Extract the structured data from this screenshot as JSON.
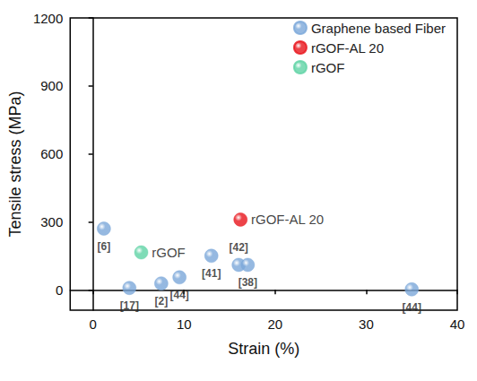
{
  "chart_data": {
    "type": "scatter",
    "xlabel": "Strain (%)",
    "ylabel": "Tensile stress (MPa)",
    "xlim": [
      -2.5,
      40
    ],
    "xticks": [
      0,
      10,
      20,
      30,
      40
    ],
    "ylim": [
      -90,
      1200
    ],
    "yticks": [
      0,
      300,
      600,
      900,
      1200
    ],
    "grid": false,
    "legend": "upper right",
    "series": [
      {
        "name": "Graphene based Fiber",
        "color": "#7ba7d9",
        "marker": "circle",
        "x": [
          1.2,
          4.0,
          7.5,
          9.5,
          13.0,
          16.0,
          17.0,
          35.0
        ],
        "values": [
          270,
          8,
          28,
          55,
          150,
          110,
          110,
          2
        ],
        "point_labels": [
          "[6]",
          "[17]",
          "[2]",
          "[44]",
          "[41]",
          "[42]",
          "[38]",
          "[44]"
        ]
      },
      {
        "name": "rGOF-AL 20",
        "color": "#e8141b",
        "marker": "circle",
        "x": [
          16.2
        ],
        "values": [
          310
        ],
        "point_labels": [
          "rGOF-AL 20"
        ]
      },
      {
        "name": "rGOF",
        "color": "#5fd3a5",
        "marker": "circle",
        "x": [
          5.3
        ],
        "values": [
          165
        ],
        "point_labels": [
          "rGOF"
        ]
      }
    ]
  }
}
